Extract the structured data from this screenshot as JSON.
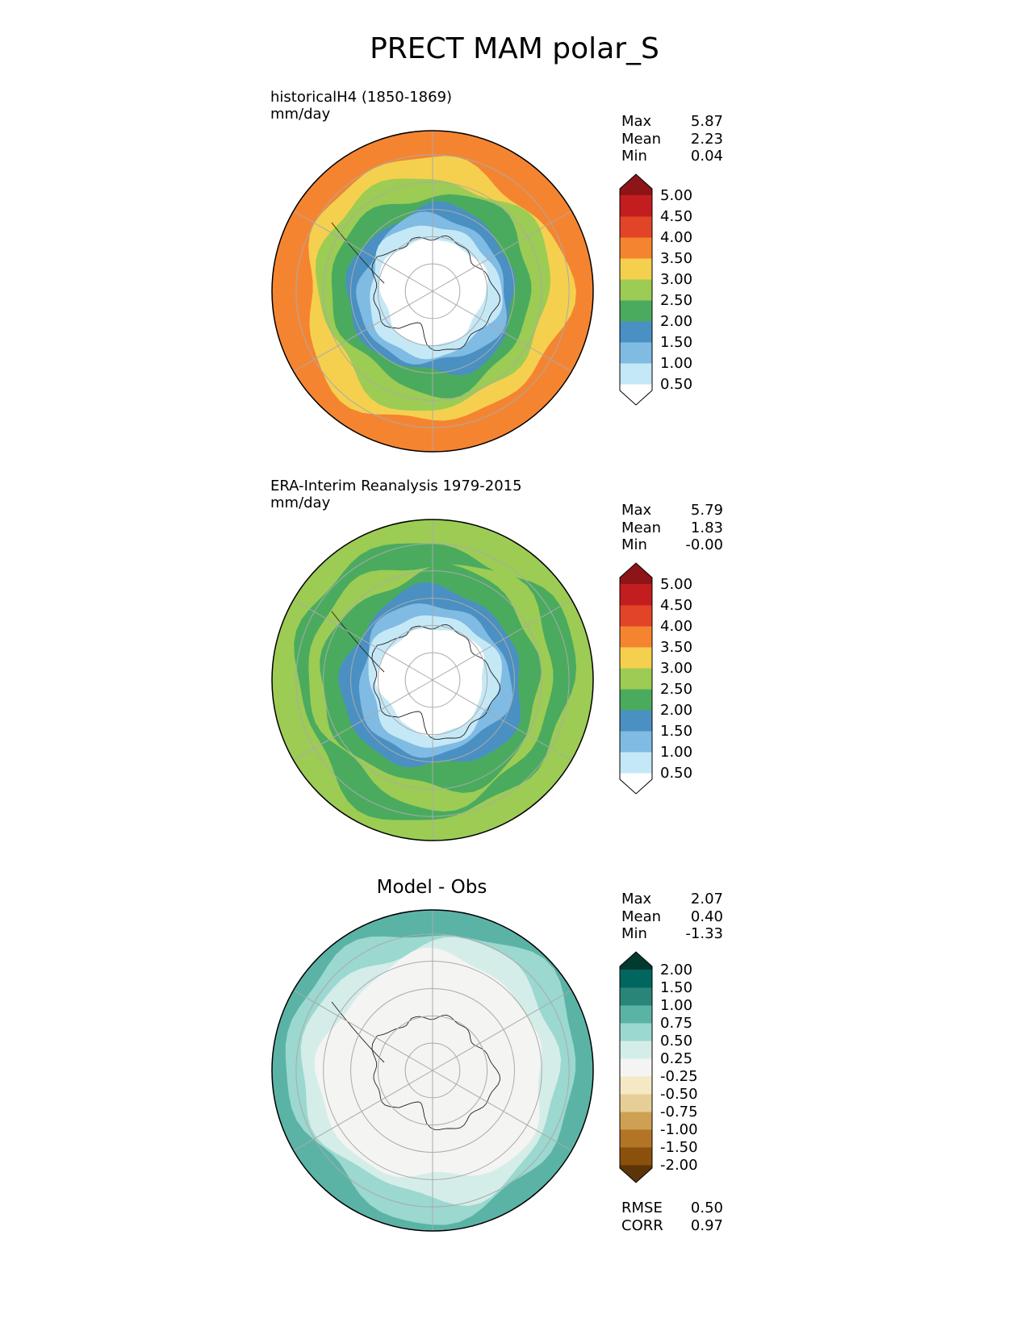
{
  "figure": {
    "title": "PRECT MAM polar_S"
  },
  "palettes": {
    "precip": [
      "#ffffff",
      "#c5e8f7",
      "#7fbbe3",
      "#4a90c2",
      "#4aab5f",
      "#9ccc54",
      "#f5d04f",
      "#f58431",
      "#e24428",
      "#c41d20",
      "#8d1518"
    ],
    "diff": [
      "#5b3508",
      "#8a510d",
      "#b27425",
      "#cda053",
      "#e6cf97",
      "#f5e8c4",
      "#f4f4f2",
      "#d4ede9",
      "#9bd8cf",
      "#5bb3a6",
      "#2a8579",
      "#01665d",
      "#023a30"
    ]
  },
  "panels": [
    {
      "title_line1": "historicalH4 (1850-1869)",
      "title_line2": "mm/day",
      "stats": [
        {
          "label": "Max",
          "value": "5.87"
        },
        {
          "label": "Mean",
          "value": "2.23"
        },
        {
          "label": "Min",
          "value": "0.04"
        }
      ],
      "colorbar": {
        "palette": "precip",
        "ticks": [
          "0.50",
          "1.00",
          "1.50",
          "2.00",
          "2.50",
          "3.00",
          "3.50",
          "4.00",
          "4.50",
          "5.00"
        ]
      },
      "map_rings": [
        {
          "color": "#f58431",
          "r": 1.0
        },
        {
          "color": "#f5d04f",
          "r": 0.82
        },
        {
          "color": "#9ccc54",
          "r": 0.72
        },
        {
          "color": "#4aab5f",
          "r": 0.62
        },
        {
          "color": "#4a90c2",
          "r": 0.52
        },
        {
          "color": "#7fbbe3",
          "r": 0.46
        },
        {
          "color": "#c5e8f7",
          "r": 0.41
        },
        {
          "color": "#ffffff",
          "r": 0.33
        }
      ]
    },
    {
      "title_line1": "ERA-Interim Reanalysis 1979-2015",
      "title_line2": "mm/day",
      "stats": [
        {
          "label": "Max",
          "value": "5.79"
        },
        {
          "label": "Mean",
          "value": "1.83"
        },
        {
          "label": "Min",
          "value": "-0.00"
        }
      ],
      "colorbar": {
        "palette": "precip",
        "ticks": [
          "0.50",
          "1.00",
          "1.50",
          "2.00",
          "2.50",
          "3.00",
          "3.50",
          "4.00",
          "4.50",
          "5.00"
        ]
      },
      "map_rings": [
        {
          "color": "#9ccc54",
          "r": 1.0
        },
        {
          "color": "#4aab5f",
          "r": 0.86
        },
        {
          "color": "#9ccc54",
          "r": 0.76
        },
        {
          "color": "#4aab5f",
          "r": 0.68
        },
        {
          "color": "#4a90c2",
          "r": 0.56
        },
        {
          "color": "#7fbbe3",
          "r": 0.47
        },
        {
          "color": "#c5e8f7",
          "r": 0.41
        },
        {
          "color": "#ffffff",
          "r": 0.33
        }
      ]
    },
    {
      "title_center": "Model - Obs",
      "stats": [
        {
          "label": "Max",
          "value": "2.07"
        },
        {
          "label": "Mean",
          "value": "0.40"
        },
        {
          "label": "Min",
          "value": "-1.33"
        }
      ],
      "colorbar": {
        "palette": "diff",
        "ticks": [
          "-2.00",
          "-1.50",
          "-1.00",
          "-0.75",
          "-0.50",
          "-0.25",
          "0.25",
          "0.50",
          "0.75",
          "1.00",
          "1.50",
          "2.00"
        ]
      },
      "metrics": [
        {
          "label": "RMSE",
          "value": "0.50"
        },
        {
          "label": "CORR",
          "value": "0.97"
        }
      ],
      "map_rings": [
        {
          "color": "#5bb3a6",
          "r": 1.0
        },
        {
          "color": "#9bd8cf",
          "r": 0.9
        },
        {
          "color": "#d4ede9",
          "r": 0.8
        },
        {
          "color": "#f4f4f2",
          "r": 0.7
        }
      ]
    }
  ]
}
